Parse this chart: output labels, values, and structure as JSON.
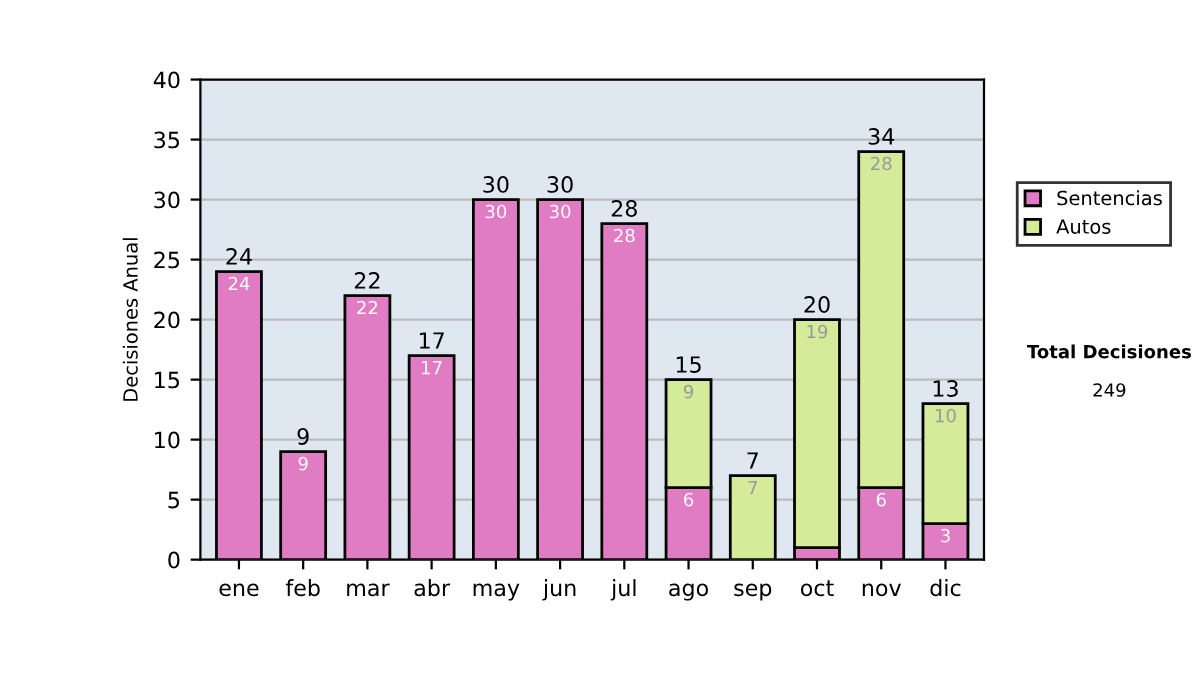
{
  "chart_data": {
    "type": "bar",
    "stacked": true,
    "ylabel": "Decisiones Anual",
    "categories": [
      "ene",
      "feb",
      "mar",
      "abr",
      "may",
      "jun",
      "jul",
      "ago",
      "sep",
      "oct",
      "nov",
      "dic"
    ],
    "series": [
      {
        "name": "Sentencias",
        "color": "#e07cc4",
        "values": [
          24,
          9,
          22,
          17,
          30,
          30,
          28,
          6,
          null,
          1,
          6,
          3
        ],
        "value_labels": [
          "24",
          "9",
          "22",
          "17",
          "30",
          "30",
          "28",
          "6",
          null,
          null,
          "6",
          "3"
        ]
      },
      {
        "name": "Autos",
        "color": "#d4ec9a",
        "values": [
          null,
          null,
          null,
          null,
          null,
          null,
          null,
          9,
          7,
          19,
          28,
          10
        ],
        "value_labels": [
          null,
          null,
          null,
          null,
          null,
          null,
          null,
          "9",
          "7",
          "19",
          "28",
          "10"
        ]
      }
    ],
    "totals": [
      "24",
      "9",
      "22",
      "17",
      "30",
      "30",
      "28",
      "15",
      "7",
      "20",
      "34",
      "13"
    ],
    "ylim": [
      0,
      40
    ],
    "yticks": [
      0,
      5,
      10,
      15,
      20,
      25,
      30,
      35,
      40
    ],
    "grid": "y",
    "legend": "right",
    "annotations": [
      "Total Decisiones",
      "249"
    ]
  }
}
